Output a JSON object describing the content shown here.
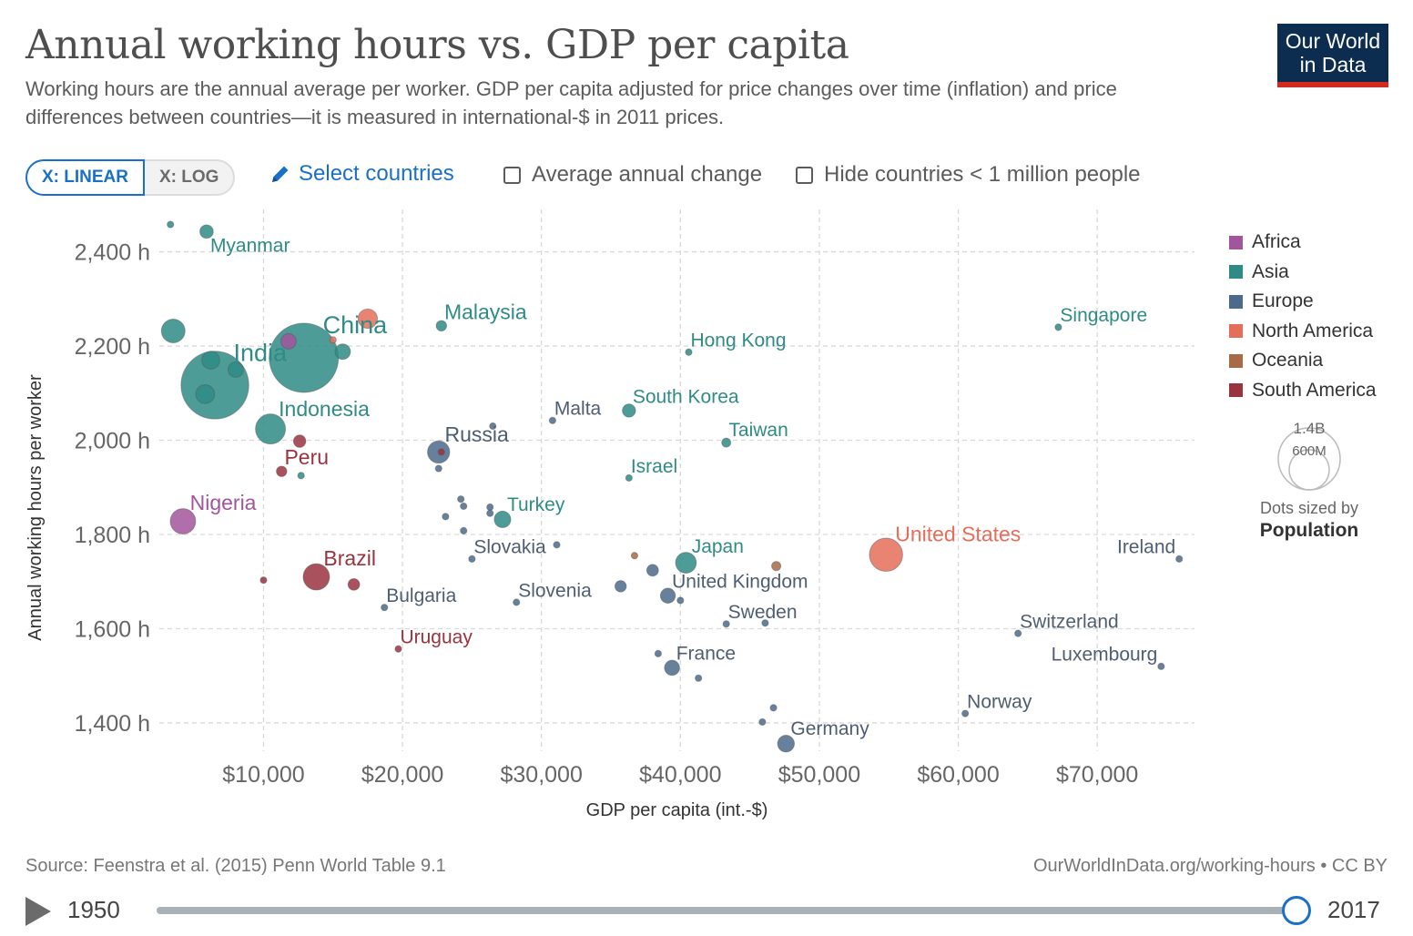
{
  "title": "Annual working hours vs. GDP per capita",
  "subtitle": "Working hours are the annual average per worker. GDP per capita adjusted for price changes over time (inflation) and price differences between countries—it is measured in international-$ in 2011 prices.",
  "logo": {
    "line1": "Our World",
    "line2": "in Data"
  },
  "controls": {
    "scale_linear": "X: LINEAR",
    "scale_log": "X: LOG",
    "select_countries": "Select countries",
    "average_change": "Average annual change",
    "hide_small": "Hide countries < 1 million people",
    "icon_select": "pencil-icon"
  },
  "colors": {
    "Africa": "#a2559c",
    "Asia": "#2f8b85",
    "Europe": "#4c6a8a",
    "North America": "#e56e5a",
    "Oceania": "#a86b45",
    "South America": "#9a3340",
    "Europe_label": "#4e5e72"
  },
  "legend": {
    "items": [
      "Africa",
      "Asia",
      "Europe",
      "North America",
      "Oceania",
      "South America"
    ],
    "size_big": "1.4B",
    "size_small": "600M",
    "size_caption": "Dots sized by",
    "size_variable": "Population"
  },
  "footer": {
    "source": "Source: Feenstra et al. (2015) Penn World Table 9.1",
    "url": "OurWorldInData.org/working-hours • CC BY"
  },
  "timeline": {
    "start": "1950",
    "end": "2017",
    "icon": "play-icon"
  },
  "chart_data": {
    "type": "scatter",
    "xlabel": "GDP per capita (int.-$)",
    "ylabel": "Annual working hours per worker",
    "xlim": [
      2500,
      77000
    ],
    "ylim": [
      1340,
      2490
    ],
    "xticks": [
      10000,
      20000,
      30000,
      40000,
      50000,
      60000,
      70000
    ],
    "xtick_labels": [
      "$10,000",
      "$20,000",
      "$30,000",
      "$40,000",
      "$50,000",
      "$60,000",
      "$70,000"
    ],
    "yticks": [
      1400,
      1600,
      1800,
      2000,
      2200,
      2400
    ],
    "ytick_labels": [
      "1,400 h",
      "1,600 h",
      "1,800 h",
      "2,000 h",
      "2,200 h",
      "2,400 h"
    ],
    "grid": true,
    "legend_position": "right",
    "points": [
      {
        "label": "Myanmar",
        "x": 5900,
        "y": 2443,
        "pop": 53,
        "region": "Asia"
      },
      {
        "label": "",
        "x": 3300,
        "y": 2458,
        "pop": 8,
        "region": "Asia"
      },
      {
        "label": "China",
        "x": 12900,
        "y": 2175,
        "pop": 1410,
        "region": "Asia"
      },
      {
        "label": "India",
        "x": 6500,
        "y": 2117,
        "pop": 1350,
        "region": "Asia"
      },
      {
        "label": "",
        "x": 3500,
        "y": 2232,
        "pop": 165,
        "region": "Asia"
      },
      {
        "label": "",
        "x": 6200,
        "y": 2170,
        "pop": 95,
        "region": "Asia"
      },
      {
        "label": "",
        "x": 5800,
        "y": 2098,
        "pop": 105,
        "region": "Asia"
      },
      {
        "label": "",
        "x": 8000,
        "y": 2150,
        "pop": 70,
        "region": "Asia"
      },
      {
        "label": "",
        "x": 11800,
        "y": 2210,
        "pop": 70,
        "region": "Africa"
      },
      {
        "label": "",
        "x": 15700,
        "y": 2188,
        "pop": 70,
        "region": "Asia"
      },
      {
        "label": "",
        "x": 17500,
        "y": 2258,
        "pop": 110,
        "region": "North America"
      },
      {
        "label": "",
        "x": 15000,
        "y": 2213,
        "pop": 6,
        "region": "North America"
      },
      {
        "label": "Malaysia",
        "x": 22800,
        "y": 2243,
        "pop": 32,
        "region": "Asia"
      },
      {
        "label": "Hong Kong",
        "x": 40600,
        "y": 2187,
        "pop": 7,
        "region": "Asia"
      },
      {
        "label": "Singapore",
        "x": 67200,
        "y": 2240,
        "pop": 6,
        "region": "Asia"
      },
      {
        "label": "Indonesia",
        "x": 10500,
        "y": 2024,
        "pop": 265,
        "region": "Asia"
      },
      {
        "label": "",
        "x": 12600,
        "y": 1998,
        "pop": 45,
        "region": "South America"
      },
      {
        "label": "Peru",
        "x": 11300,
        "y": 1934,
        "pop": 32,
        "region": "South America"
      },
      {
        "label": "",
        "x": 12700,
        "y": 1925,
        "pop": 10,
        "region": "Asia"
      },
      {
        "label": "Russia",
        "x": 22600,
        "y": 1975,
        "pop": 145,
        "region": "Europe"
      },
      {
        "label": "",
        "x": 22800,
        "y": 1975,
        "pop": 5,
        "region": "South America"
      },
      {
        "label": "",
        "x": 22600,
        "y": 1940,
        "pop": 10,
        "region": "Europe"
      },
      {
        "label": "",
        "x": 26500,
        "y": 2030,
        "pop": 5,
        "region": "Europe"
      },
      {
        "label": "Malta",
        "x": 30800,
        "y": 2042,
        "pop": 0.5,
        "region": "Europe"
      },
      {
        "label": "South Korea",
        "x": 36300,
        "y": 2063,
        "pop": 51,
        "region": "Asia"
      },
      {
        "label": "Taiwan",
        "x": 43300,
        "y": 1995,
        "pop": 24,
        "region": "Asia"
      },
      {
        "label": "Israel",
        "x": 36300,
        "y": 1920,
        "pop": 8,
        "region": "Asia"
      },
      {
        "label": "Nigeria",
        "x": 4200,
        "y": 1828,
        "pop": 190,
        "region": "Africa"
      },
      {
        "label": "Turkey",
        "x": 27200,
        "y": 1832,
        "pop": 80,
        "region": "Asia"
      },
      {
        "label": "",
        "x": 24200,
        "y": 1875,
        "pop": 4,
        "region": "Europe"
      },
      {
        "label": "",
        "x": 24400,
        "y": 1860,
        "pop": 5,
        "region": "Europe"
      },
      {
        "label": "",
        "x": 26300,
        "y": 1858,
        "pop": 5,
        "region": "Europe"
      },
      {
        "label": "",
        "x": 26300,
        "y": 1845,
        "pop": 5,
        "region": "Europe"
      },
      {
        "label": "",
        "x": 23100,
        "y": 1838,
        "pop": 6,
        "region": "Europe"
      },
      {
        "label": "",
        "x": 24400,
        "y": 1808,
        "pop": 8,
        "region": "Europe"
      },
      {
        "label": "Slovakia",
        "x": 25000,
        "y": 1748,
        "pop": 5,
        "region": "Europe"
      },
      {
        "label": "",
        "x": 31100,
        "y": 1778,
        "pop": 6,
        "region": "Europe"
      },
      {
        "label": "Brazil",
        "x": 13800,
        "y": 1710,
        "pop": 205,
        "region": "South America"
      },
      {
        "label": "",
        "x": 10000,
        "y": 1703,
        "pop": 3,
        "region": "South America"
      },
      {
        "label": "",
        "x": 16500,
        "y": 1694,
        "pop": 40,
        "region": "South America"
      },
      {
        "label": "Bulgaria",
        "x": 18700,
        "y": 1645,
        "pop": 7,
        "region": "Europe"
      },
      {
        "label": "Slovenia",
        "x": 28200,
        "y": 1656,
        "pop": 2,
        "region": "Europe"
      },
      {
        "label": "",
        "x": 36700,
        "y": 1755,
        "pop": 4,
        "region": "Oceania"
      },
      {
        "label": "Japan",
        "x": 40400,
        "y": 1740,
        "pop": 127,
        "region": "Asia"
      },
      {
        "label": "",
        "x": 38000,
        "y": 1724,
        "pop": 40,
        "region": "Europe"
      },
      {
        "label": "",
        "x": 35700,
        "y": 1690,
        "pop": 38,
        "region": "Europe"
      },
      {
        "label": "United Kingdom",
        "x": 39100,
        "y": 1670,
        "pop": 66,
        "region": "Europe"
      },
      {
        "label": "",
        "x": 40000,
        "y": 1660,
        "pop": 5,
        "region": "Europe"
      },
      {
        "label": "",
        "x": 46900,
        "y": 1733,
        "pop": 25,
        "region": "Oceania"
      },
      {
        "label": "United States",
        "x": 54800,
        "y": 1757,
        "pop": 325,
        "region": "North America"
      },
      {
        "label": "Ireland",
        "x": 75900,
        "y": 1748,
        "pop": 5,
        "region": "Europe"
      },
      {
        "label": "Sweden",
        "x": 43300,
        "y": 1610,
        "pop": 10,
        "region": "Europe"
      },
      {
        "label": "",
        "x": 46100,
        "y": 1612,
        "pop": 3,
        "region": "Europe"
      },
      {
        "label": "Switzerland",
        "x": 64300,
        "y": 1590,
        "pop": 8,
        "region": "Europe"
      },
      {
        "label": "Luxembourg",
        "x": 74600,
        "y": 1520,
        "pop": 0.6,
        "region": "Europe"
      },
      {
        "label": "Uruguay",
        "x": 19700,
        "y": 1557,
        "pop": 3.5,
        "region": "South America"
      },
      {
        "label": "France",
        "x": 39400,
        "y": 1517,
        "pop": 67,
        "region": "Europe"
      },
      {
        "label": "",
        "x": 38400,
        "y": 1547,
        "pop": 5,
        "region": "Europe"
      },
      {
        "label": "",
        "x": 41300,
        "y": 1495,
        "pop": 6,
        "region": "Europe"
      },
      {
        "label": "",
        "x": 46700,
        "y": 1432,
        "pop": 6,
        "region": "Europe"
      },
      {
        "label": "",
        "x": 45900,
        "y": 1402,
        "pop": 6,
        "region": "Europe"
      },
      {
        "label": "Norway",
        "x": 60500,
        "y": 1420,
        "pop": 5,
        "region": "Europe"
      },
      {
        "label": "Germany",
        "x": 47600,
        "y": 1356,
        "pop": 83,
        "region": "Europe"
      }
    ]
  }
}
